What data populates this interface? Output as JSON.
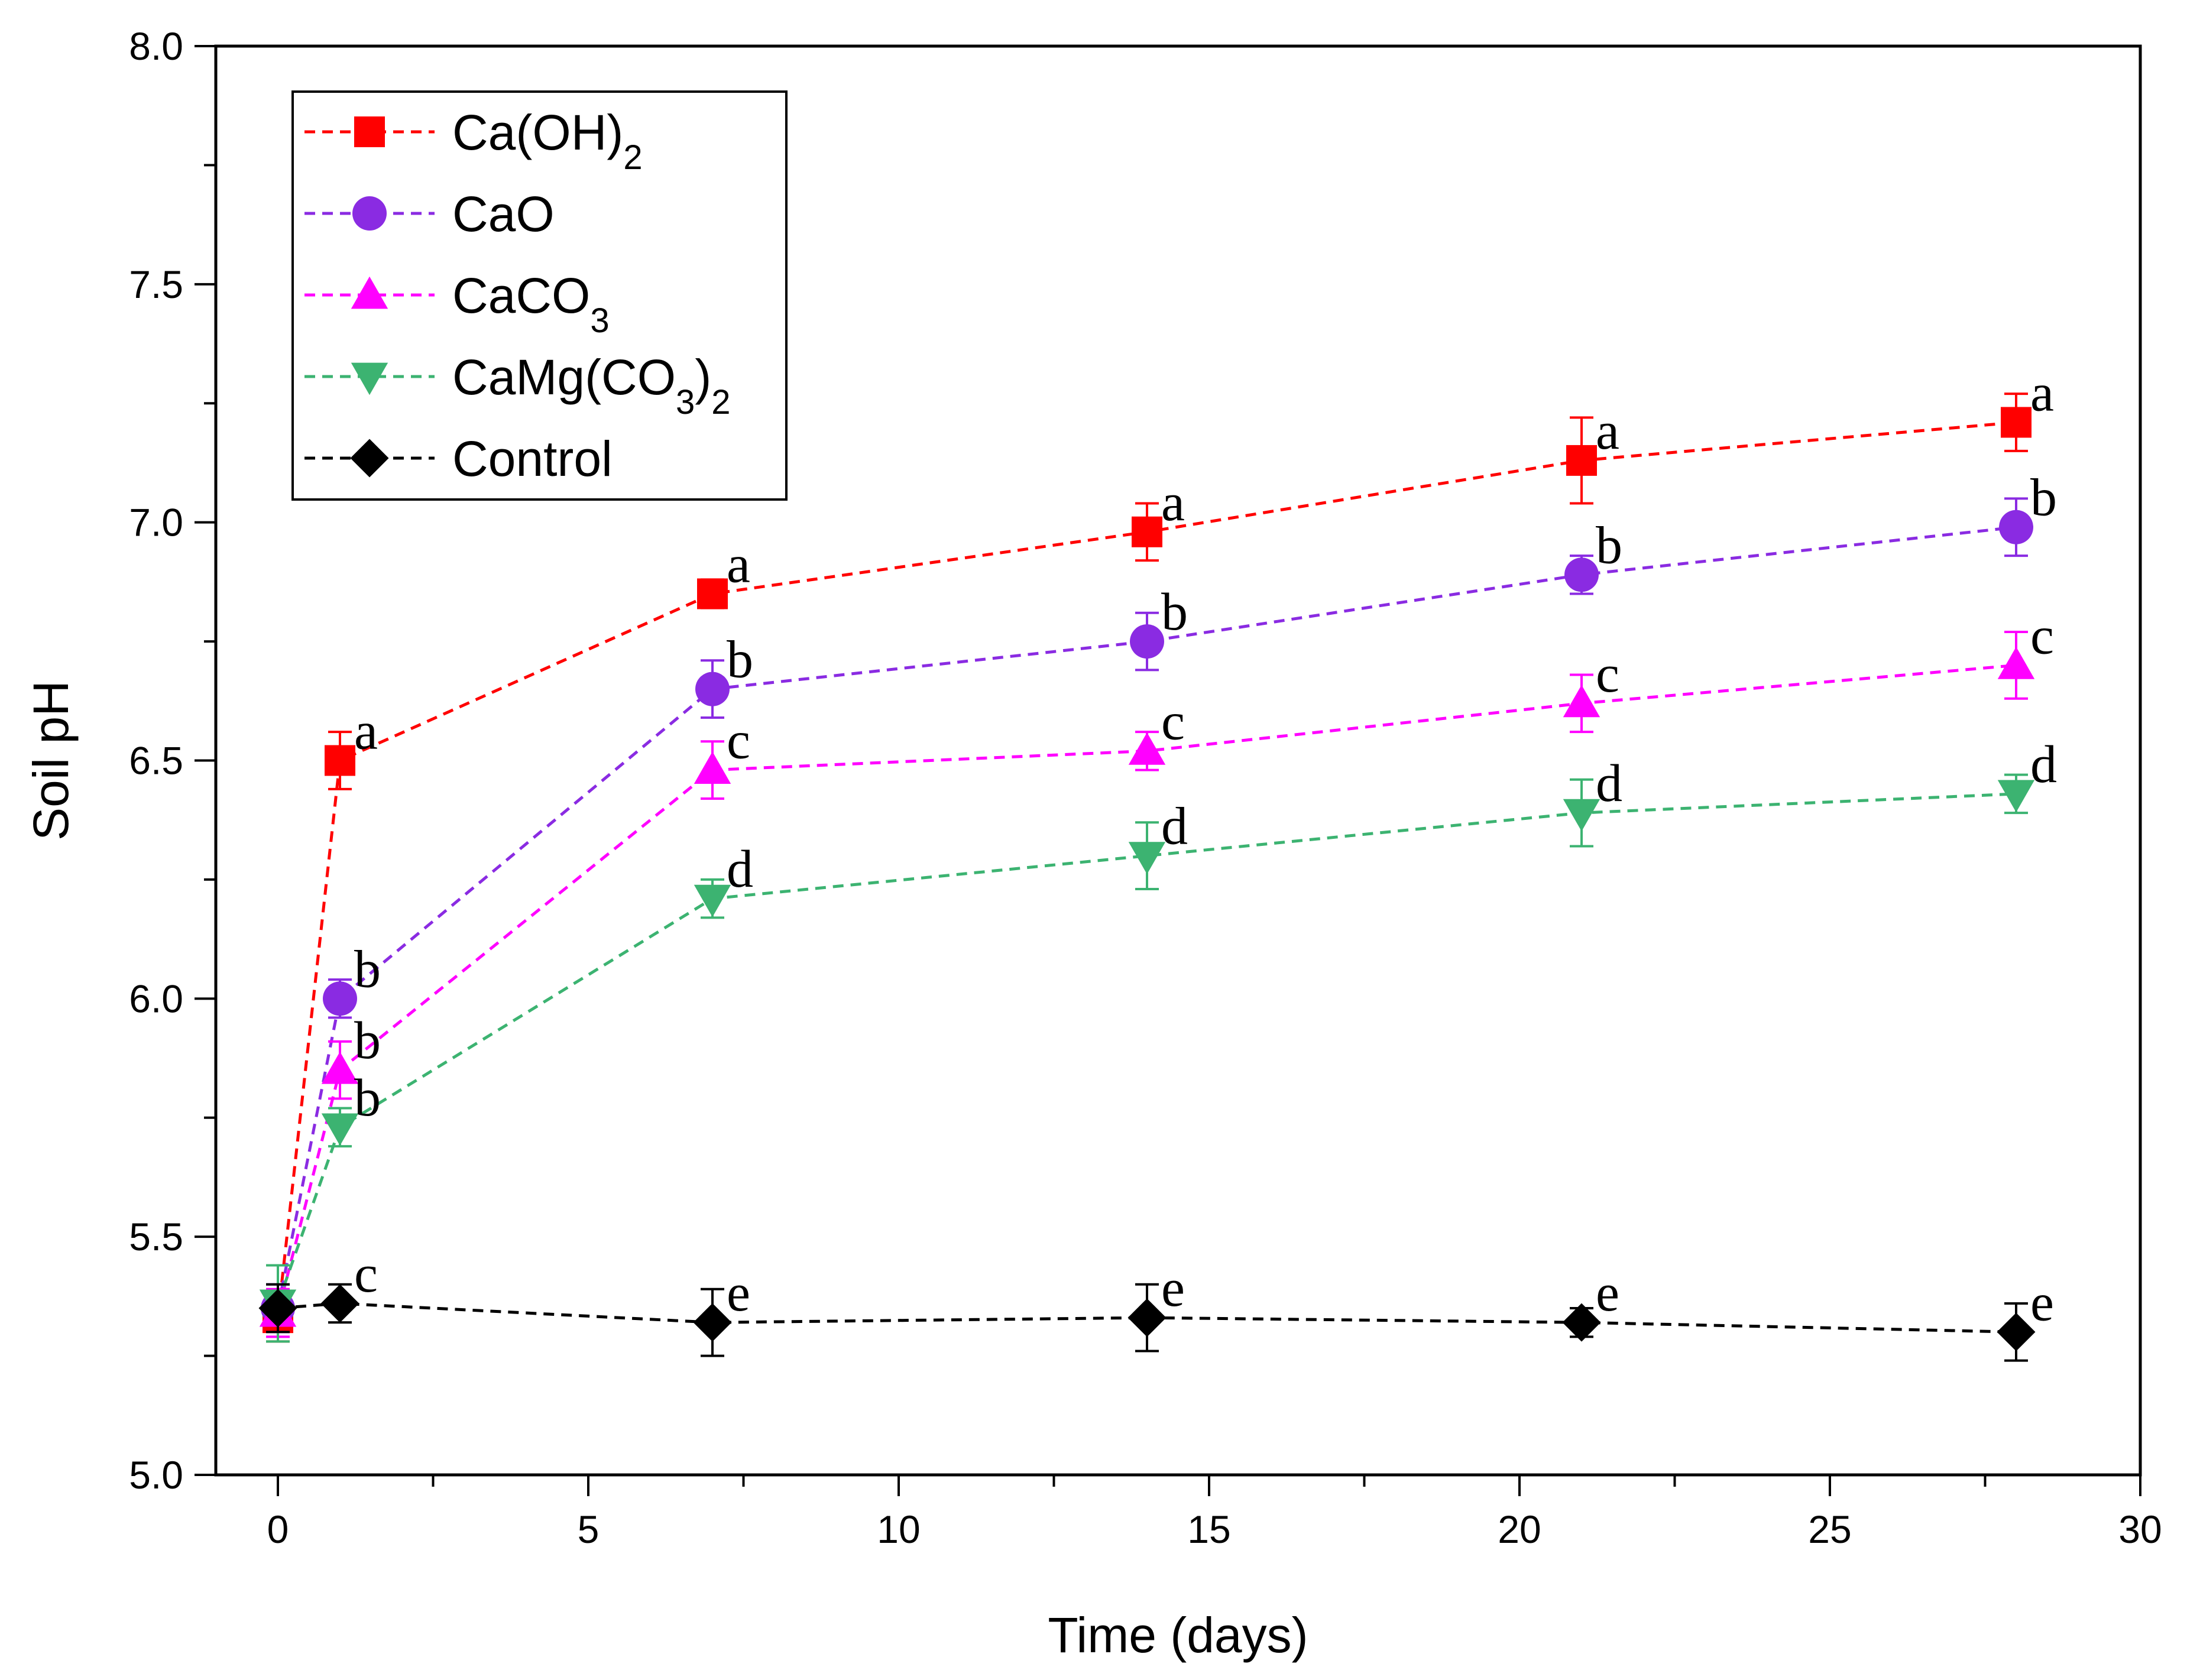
{
  "chart_data": {
    "type": "line",
    "xlabel": "Time (days)",
    "ylabel": "Soil pH",
    "xlim": [
      -1,
      30
    ],
    "ylim": [
      5.0,
      8.0
    ],
    "x_ticks": [
      "0",
      "5",
      "10",
      "15",
      "20",
      "25",
      "30"
    ],
    "y_ticks": [
      "5.0",
      "5.5",
      "6.0",
      "6.5",
      "7.0",
      "7.5",
      "8.0"
    ],
    "x": [
      0,
      1,
      7,
      14,
      21,
      28
    ],
    "legend_position": "top-left",
    "series": [
      {
        "name": "Ca(OH)2",
        "label_main": "Ca(OH)",
        "label_sub": "2",
        "label_tail": "",
        "color": "#ff0000",
        "marker": "square",
        "values": [
          5.33,
          6.5,
          6.85,
          6.98,
          7.13,
          7.21
        ],
        "errors": [
          0.05,
          0.06,
          0.03,
          0.06,
          0.09,
          0.06
        ],
        "letters": [
          "",
          "a",
          "a",
          "a",
          "a",
          "a"
        ]
      },
      {
        "name": "CaO",
        "label_main": "CaO",
        "label_sub": "",
        "label_tail": "",
        "color": "#8a2be2",
        "marker": "circle",
        "values": [
          5.35,
          6.0,
          6.65,
          6.75,
          6.89,
          6.99
        ],
        "errors": [
          0.05,
          0.04,
          0.06,
          0.06,
          0.04,
          0.06
        ],
        "letters": [
          "",
          "b",
          "b",
          "b",
          "b",
          "b"
        ]
      },
      {
        "name": "CaCO3",
        "label_main": "CaCO",
        "label_sub": "3",
        "label_tail": "",
        "color": "#ff00ff",
        "marker": "triangle-up",
        "values": [
          5.34,
          5.85,
          6.48,
          6.52,
          6.62,
          6.7
        ],
        "errors": [
          0.05,
          0.06,
          0.06,
          0.04,
          0.06,
          0.07
        ],
        "letters": [
          "",
          "b",
          "c",
          "c",
          "c",
          "c"
        ]
      },
      {
        "name": "CaMg(CO3)2",
        "label_main": "CaMg(CO",
        "label_sub": "3",
        "label_tail": ")",
        "label_sub2": "2",
        "color": "#3cb371",
        "marker": "triangle-down",
        "values": [
          5.36,
          5.73,
          6.21,
          6.3,
          6.39,
          6.43
        ],
        "errors": [
          0.08,
          0.04,
          0.04,
          0.07,
          0.07,
          0.04
        ],
        "letters": [
          "",
          "b",
          "d",
          "d",
          "d",
          "d"
        ]
      },
      {
        "name": "Control",
        "label_main": "Control",
        "label_sub": "",
        "label_tail": "",
        "color": "#000000",
        "marker": "diamond",
        "values": [
          5.35,
          5.36,
          5.32,
          5.33,
          5.32,
          5.3
        ],
        "errors": [
          0.05,
          0.04,
          0.07,
          0.07,
          0.03,
          0.06
        ],
        "letters": [
          "",
          "c",
          "e",
          "e",
          "e",
          "e"
        ]
      }
    ]
  }
}
